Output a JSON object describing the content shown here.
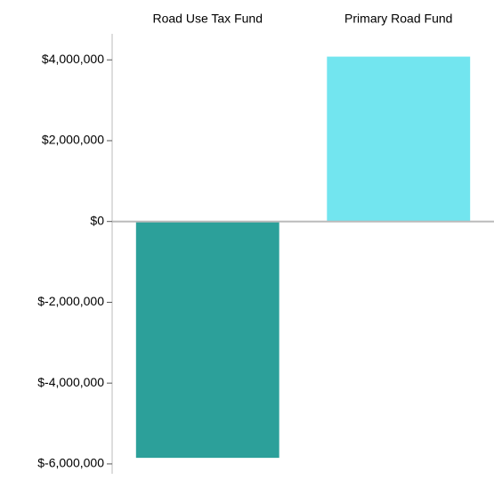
{
  "chart_data": {
    "type": "bar",
    "categories": [
      "Road Use Tax Fund",
      "Primary Road Fund"
    ],
    "values": [
      -5850000,
      4080000
    ],
    "colors": [
      "#2ca09a",
      "#72e5ef"
    ],
    "ylim": [
      -6200000,
      4600000
    ],
    "yticks": [
      {
        "value": -6000000,
        "label": "$-6,000,000"
      },
      {
        "value": -4000000,
        "label": "$-4,000,000"
      },
      {
        "value": -2000000,
        "label": "$-2,000,000"
      },
      {
        "value": 0,
        "label": "$0"
      },
      {
        "value": 2000000,
        "label": "$2,000,000"
      },
      {
        "value": 4000000,
        "label": "$4,000,000"
      }
    ]
  }
}
